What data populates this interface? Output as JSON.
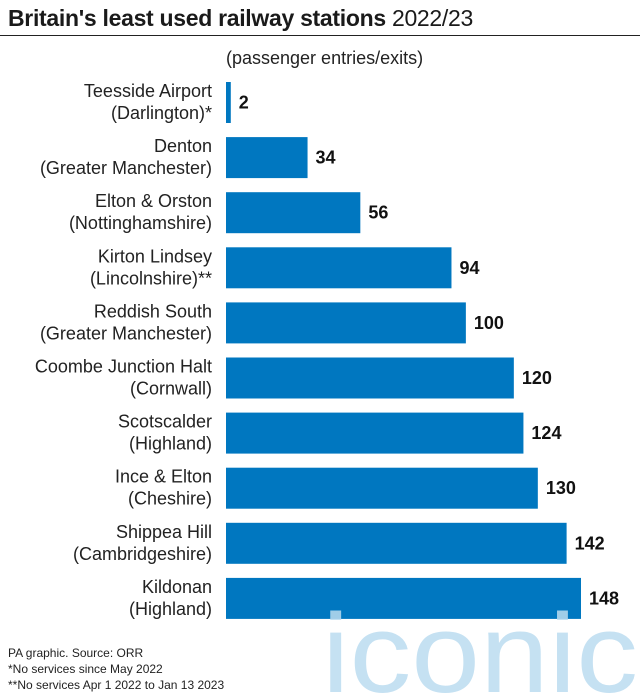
{
  "title": {
    "main": "Britain's least used railway stations",
    "year": " 2022/23"
  },
  "subtitle": "(passenger entries/exits)",
  "footer": {
    "source": "PA graphic. Source: ORR",
    "note1": "*No services since May 2022",
    "note2": "**No services Apr 1 2022 to Jan 13 2023"
  },
  "watermark": {
    "text": "iconic",
    "color": "#bcdcf0"
  },
  "colors": {
    "bar": "#0077c0",
    "text": "#1a1a1a"
  },
  "chart_data": {
    "type": "bar",
    "orientation": "horizontal",
    "title": "Britain's least used railway stations 2022/23",
    "subtitle": "(passenger entries/exits)",
    "categories": [
      [
        "Teesside Airport",
        "(Darlington)*"
      ],
      [
        "Denton",
        "(Greater Manchester)"
      ],
      [
        "Elton & Orston",
        "(Nottinghamshire)"
      ],
      [
        "Kirton Lindsey",
        "(Lincolnshire)**"
      ],
      [
        "Reddish South",
        "(Greater Manchester)"
      ],
      [
        "Coombe Junction Halt",
        "(Cornwall)"
      ],
      [
        "Scotscalder",
        "(Highland)"
      ],
      [
        "Ince & Elton",
        "(Cheshire)"
      ],
      [
        "Shippea Hill",
        "(Cambridgeshire)"
      ],
      [
        "Kildonan",
        "(Highland)"
      ]
    ],
    "values": [
      2,
      34,
      56,
      94,
      100,
      120,
      124,
      130,
      142,
      148
    ],
    "data_labels": [
      "2",
      "34",
      "56",
      "94",
      "100",
      "120",
      "124",
      "130",
      "142",
      "148"
    ],
    "xlim": [
      0,
      148
    ],
    "grid": false,
    "legend": "none",
    "xlabel": "",
    "ylabel": ""
  }
}
